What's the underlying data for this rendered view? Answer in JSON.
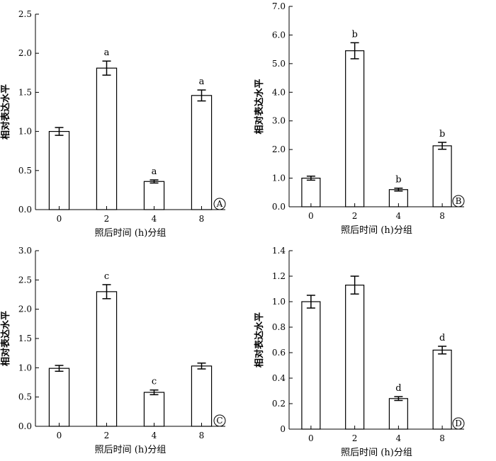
{
  "chart_data": [
    {
      "type": "bar",
      "panel_label": "A",
      "categories": [
        "0",
        "2",
        "4",
        "8"
      ],
      "values": [
        1.0,
        1.81,
        0.36,
        1.46
      ],
      "errors": [
        0.05,
        0.09,
        0.02,
        0.07
      ],
      "significance": [
        "",
        "a",
        "a",
        "a"
      ],
      "ylabel": "相对表达水平",
      "xlabel": "照后时间 (h)分组",
      "ylim": [
        0,
        2.5
      ],
      "yticks": [
        "0.0",
        "0.5",
        "1.0",
        "1.5",
        "2.0",
        "2.5"
      ],
      "grid": false
    },
    {
      "type": "bar",
      "panel_label": "B",
      "categories": [
        "0",
        "2",
        "4",
        "8"
      ],
      "values": [
        1.0,
        5.45,
        0.6,
        2.13
      ],
      "errors": [
        0.07,
        0.28,
        0.05,
        0.12
      ],
      "significance": [
        "",
        "b",
        "b",
        "b"
      ],
      "ylabel": "相对表达水平",
      "xlabel": "照后时间 (h)分组",
      "ylim": [
        0,
        7.0
      ],
      "yticks": [
        "0.0",
        "1.0",
        "2.0",
        "3.0",
        "4.0",
        "5.0",
        "6.0",
        "7.0"
      ],
      "grid": false
    },
    {
      "type": "bar",
      "panel_label": "C",
      "categories": [
        "0",
        "2",
        "4",
        "8"
      ],
      "values": [
        0.99,
        2.3,
        0.58,
        1.03
      ],
      "errors": [
        0.05,
        0.12,
        0.04,
        0.05
      ],
      "significance": [
        "",
        "c",
        "c",
        ""
      ],
      "ylabel": "相对表达水平",
      "xlabel": "照后时间 (h)分组",
      "ylim": [
        0,
        3.0
      ],
      "yticks": [
        "0.0",
        "0.5",
        "1.0",
        "1.5",
        "2.0",
        "2.5",
        "3.0"
      ],
      "grid": false
    },
    {
      "type": "bar",
      "panel_label": "D",
      "categories": [
        "0",
        "2",
        "4",
        "8"
      ],
      "values": [
        1.0,
        1.13,
        0.24,
        0.62
      ],
      "errors": [
        0.05,
        0.07,
        0.015,
        0.03
      ],
      "significance": [
        "",
        "",
        "d",
        "d"
      ],
      "ylabel": "相对表达水平",
      "xlabel": "照后时间 (h)分组",
      "ylim": [
        0,
        1.4
      ],
      "yticks": [
        "0",
        "0.2",
        "0.4",
        "0.6",
        "0.8",
        "1.0",
        "1.2",
        "1.4"
      ],
      "grid": false
    }
  ]
}
